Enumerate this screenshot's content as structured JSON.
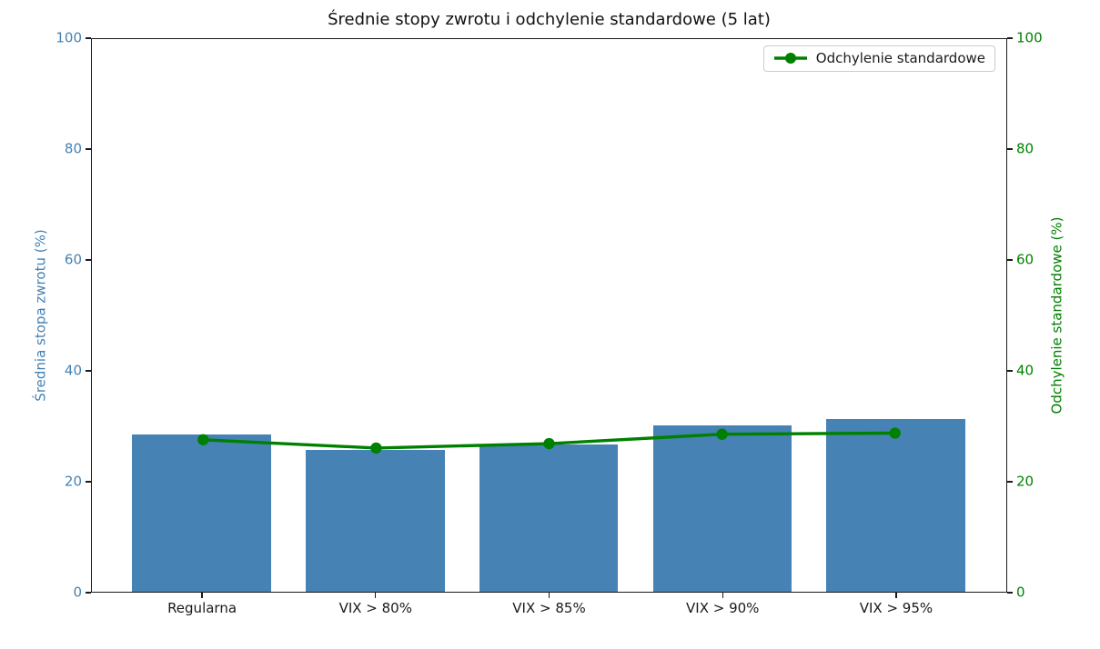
{
  "chart_data": {
    "type": "bar",
    "title": "Średnie stopy zwrotu i odchylenie standardowe (5 lat)",
    "categories": [
      "Regularna",
      "VIX > 80%",
      "VIX > 85%",
      "VIX > 90%",
      "VIX > 95%"
    ],
    "series": [
      {
        "name": "Średnia stopa zwrotu",
        "type": "bar",
        "axis": "left",
        "color": "#4682B4",
        "values": [
          28.3,
          25.6,
          26.6,
          30.0,
          31.1
        ]
      },
      {
        "name": "Odchylenie standardowe",
        "type": "line",
        "axis": "right",
        "color": "#008000",
        "values": [
          27.5,
          26.0,
          26.8,
          28.5,
          28.7
        ]
      }
    ],
    "left_axis": {
      "label": "Średnia stopa zwrotu (%)",
      "color": "#4682B4",
      "ticks": [
        0,
        20,
        40,
        60,
        80,
        100
      ],
      "lim": [
        0,
        100
      ]
    },
    "right_axis": {
      "label": "Odchylenie standardowe (%)",
      "color": "#008000",
      "ticks": [
        0,
        20,
        40,
        60,
        80,
        100
      ],
      "lim": [
        0,
        100
      ]
    },
    "legend": {
      "entries": [
        "Odchylenie standardowe"
      ],
      "position": "upper right"
    },
    "grid": false
  }
}
